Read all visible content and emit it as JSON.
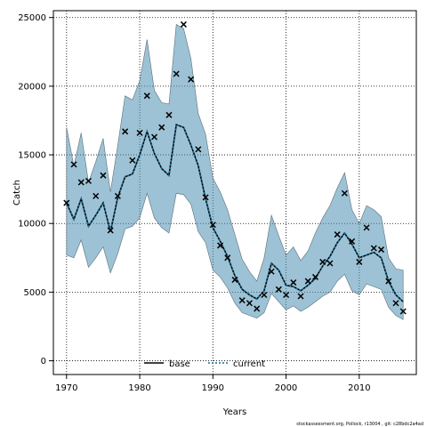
{
  "chart_data": {
    "type": "line",
    "xlabel": "Years",
    "ylabel": "Catch",
    "xlim": [
      1968.2,
      2017.8
    ],
    "ylim": [
      -1000,
      25500
    ],
    "x_ticks": [
      1970,
      1980,
      1990,
      2000,
      2010
    ],
    "y_ticks": [
      0,
      5000,
      10000,
      15000,
      20000,
      25000
    ],
    "grid": true,
    "legend_position": "bottom-center",
    "legend": [
      {
        "label": "base",
        "style": "solid",
        "color": "#000000"
      },
      {
        "label": "current",
        "style": "dotted",
        "color": "#1a6f99"
      }
    ],
    "band_color": "#4d8fb3",
    "marker": "x",
    "years": [
      1970,
      1971,
      1972,
      1973,
      1974,
      1975,
      1976,
      1977,
      1978,
      1979,
      1980,
      1981,
      1982,
      1983,
      1984,
      1985,
      1986,
      1987,
      1988,
      1989,
      1990,
      1991,
      1992,
      1993,
      1994,
      1995,
      1996,
      1997,
      1998,
      1999,
      2000,
      2001,
      2002,
      2003,
      2004,
      2005,
      2006,
      2007,
      2008,
      2009,
      2010,
      2011,
      2012,
      2013,
      2014,
      2015,
      2016
    ],
    "series": [
      {
        "name": "current",
        "values": [
          11500,
          10300,
          11800,
          9800,
          10600,
          11500,
          9400,
          11900,
          13400,
          13600,
          15000,
          16700,
          15100,
          14000,
          13500,
          17200,
          17000,
          15700,
          14200,
          11800,
          9700,
          8700,
          7600,
          6200,
          5200,
          4800,
          4500,
          5100,
          7100,
          6600,
          5500,
          5400,
          5100,
          5500,
          6000,
          6900,
          7600,
          8600,
          9300,
          8500,
          7500,
          7700,
          7900,
          7500,
          5800,
          4800,
          4300
        ],
        "upper": [
          17000,
          14200,
          16600,
          13000,
          14500,
          16200,
          12300,
          15700,
          19300,
          19000,
          20400,
          23400,
          19700,
          18800,
          18700,
          24500,
          24200,
          22000,
          18000,
          16500,
          13300,
          12300,
          11000,
          9200,
          7400,
          6500,
          5800,
          7500,
          10600,
          9100,
          7700,
          8300,
          7300,
          8000,
          9300,
          10400,
          11300,
          12600,
          13700,
          11000,
          10000,
          11300,
          11000,
          10500,
          7500,
          6700,
          6600
        ],
        "lower": [
          7700,
          7500,
          8800,
          6800,
          7500,
          8300,
          6400,
          7800,
          9600,
          9800,
          10400,
          12200,
          10400,
          9700,
          9300,
          12200,
          12100,
          11400,
          9400,
          8600,
          6600,
          6100,
          5300,
          4200,
          3500,
          3300,
          3100,
          3500,
          4900,
          4300,
          3700,
          4000,
          3600,
          3900,
          4300,
          4700,
          5000,
          5800,
          6300,
          5100,
          4800,
          5600,
          5400,
          5200,
          3900,
          3300,
          3000
        ]
      }
    ],
    "observed": {
      "name": "observed",
      "values": [
        11500,
        14300,
        13000,
        13100,
        12000,
        13500,
        9500,
        12000,
        16700,
        14600,
        16600,
        19300,
        16300,
        17000,
        17900,
        20900,
        24500,
        20500,
        15400,
        11900,
        9900,
        8400,
        7500,
        5900,
        4400,
        4200,
        3800,
        4800,
        6500,
        5200,
        4800,
        5700,
        4700,
        5800,
        6100,
        7200,
        7100,
        9200,
        12200,
        8700,
        7200,
        9700,
        8200,
        8100,
        5800,
        4200,
        3600
      ]
    }
  },
  "footer": "stockassessment.org, Pollock, r13004 , git: c28bdc2a4ad"
}
